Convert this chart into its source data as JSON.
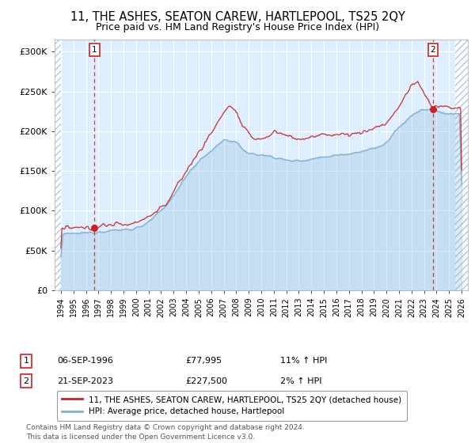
{
  "title": "11, THE ASHES, SEATON CAREW, HARTLEPOOL, TS25 2QY",
  "subtitle": "Price paid vs. HM Land Registry's House Price Index (HPI)",
  "title_fontsize": 10.5,
  "subtitle_fontsize": 9,
  "hpi_color": "#7bafd4",
  "price_color": "#cc2222",
  "bg_color": "#ddeeff",
  "hatch_color": "#b0c8e0",
  "grid_color": "#ffffff",
  "point1_x": 1996.69,
  "point2_x": 2023.72,
  "point1_price": 77995,
  "point2_price": 227500,
  "ylim_max": 315000,
  "xlim_min": 1993.5,
  "xlim_max": 2026.5,
  "ylabel_ticks": [
    0,
    50000,
    100000,
    150000,
    200000,
    250000,
    300000
  ],
  "ylabel_labels": [
    "£0",
    "£50K",
    "£100K",
    "£150K",
    "£200K",
    "£250K",
    "£300K"
  ],
  "xtick_years": [
    1994,
    1995,
    1996,
    1997,
    1998,
    1999,
    2000,
    2001,
    2002,
    2003,
    2004,
    2005,
    2006,
    2007,
    2008,
    2009,
    2010,
    2011,
    2012,
    2013,
    2014,
    2015,
    2016,
    2017,
    2018,
    2019,
    2020,
    2021,
    2022,
    2023,
    2024,
    2025,
    2026
  ],
  "legend_label_price": "11, THE ASHES, SEATON CAREW, HARTLEPOOL, TS25 2QY (detached house)",
  "legend_label_hpi": "HPI: Average price, detached house, Hartlepool",
  "table_row1": [
    "1",
    "06-SEP-1996",
    "£77,995",
    "11% ↑ HPI"
  ],
  "table_row2": [
    "2",
    "21-SEP-2023",
    "£227,500",
    "2% ↑ HPI"
  ],
  "footer": "Contains HM Land Registry data © Crown copyright and database right 2024.\nThis data is licensed under the Open Government Licence v3.0.",
  "hpi_anchors_t": [
    1994.0,
    1995.0,
    1996.0,
    1997.0,
    1998.0,
    1999.0,
    2000.0,
    2001.0,
    2002.0,
    2003.0,
    2004.0,
    2005.0,
    2006.0,
    2007.0,
    2008.0,
    2009.0,
    2010.0,
    2011.0,
    2012.0,
    2013.0,
    2014.0,
    2015.0,
    2016.0,
    2017.0,
    2018.0,
    2019.0,
    2020.0,
    2021.0,
    2022.0,
    2023.0,
    2024.0,
    2025.0,
    2026.0
  ],
  "hpi_anchors_v": [
    70000,
    71000,
    72000,
    74000,
    75000,
    76000,
    78000,
    85000,
    100000,
    118000,
    145000,
    162000,
    175000,
    190000,
    185000,
    172000,
    170000,
    168000,
    163000,
    163000,
    165000,
    168000,
    170000,
    172000,
    175000,
    178000,
    185000,
    205000,
    220000,
    228000,
    225000,
    222000,
    222000
  ],
  "price_anchors_t": [
    1994.0,
    1995.0,
    1996.0,
    1996.69,
    1997.5,
    1998.5,
    1999.5,
    2001.0,
    2002.5,
    2004.0,
    2005.5,
    2006.5,
    2007.0,
    2007.5,
    2008.0,
    2008.5,
    2009.5,
    2010.5,
    2011.0,
    2012.0,
    2013.0,
    2014.0,
    2015.0,
    2016.0,
    2017.0,
    2018.0,
    2019.0,
    2020.0,
    2021.0,
    2021.5,
    2022.0,
    2022.5,
    2023.0,
    2023.5,
    2023.72,
    2024.0,
    2025.0,
    2026.0
  ],
  "price_anchors_v": [
    78000,
    78000,
    78000,
    77995,
    82000,
    83000,
    83000,
    92000,
    110000,
    150000,
    185000,
    210000,
    225000,
    232000,
    225000,
    205000,
    190000,
    192000,
    200000,
    195000,
    190000,
    192000,
    196000,
    196000,
    196000,
    198000,
    204000,
    210000,
    230000,
    245000,
    258000,
    262000,
    248000,
    235000,
    227500,
    232000,
    230000,
    228000
  ]
}
